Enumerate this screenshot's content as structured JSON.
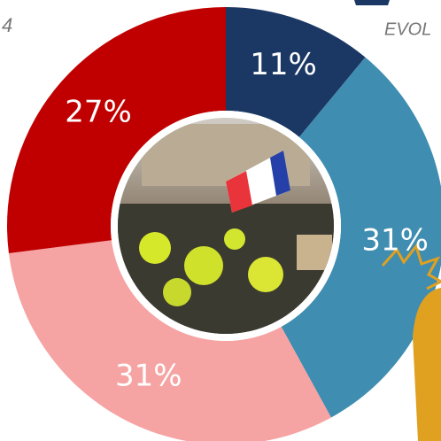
{
  "chart_data": {
    "type": "donut",
    "subtitle": "EVOL",
    "annotations": [
      "4"
    ],
    "categories": [
      null,
      null,
      null,
      null
    ],
    "values": [
      11,
      31,
      31,
      27
    ],
    "value_labels": [
      "11%",
      "31%",
      "31%",
      "27%"
    ],
    "colors": [
      "#1b3764",
      "#3f8db0",
      "#f6a3a3",
      "#c00000"
    ]
  }
}
